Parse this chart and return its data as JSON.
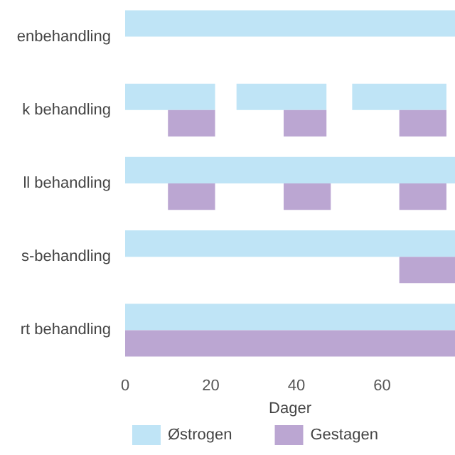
{
  "chart_data": {
    "type": "bar",
    "orientation": "horizontal",
    "xlabel": "Dager",
    "categories": [
      "enbehandling",
      "k behandling",
      "ll behandling",
      "s-behandling",
      "rt behandling"
    ],
    "xlim": [
      0,
      77
    ],
    "xticks": [
      0,
      20,
      40,
      60
    ],
    "legend": "bottom",
    "series": [
      {
        "name": "Østrogen",
        "color": "#bfe4f6",
        "values": [
          77,
          21,
          77,
          77,
          77
        ],
        "base": [
          0,
          0,
          0,
          0,
          0
        ]
      },
      {
        "color": "#bfe4f6",
        "values": [
          null,
          21,
          null,
          null,
          null
        ],
        "base": [
          null,
          26,
          null,
          null,
          null
        ]
      },
      {
        "color": "#bfe4f6",
        "values": [
          null,
          22,
          null,
          null,
          null
        ],
        "base": [
          null,
          53,
          null,
          null,
          null
        ]
      },
      {
        "name": "Gestagen",
        "color": "#bba6d2",
        "values": [
          null,
          11,
          11,
          13,
          77
        ],
        "base": [
          null,
          10,
          10,
          64,
          0
        ]
      },
      {
        "color": "#bba6d2",
        "values": [
          null,
          10,
          11,
          null,
          null
        ],
        "base": [
          null,
          37,
          37,
          null,
          null
        ]
      },
      {
        "color": "#bba6d2",
        "values": [
          null,
          11,
          11,
          null,
          null
        ],
        "base": [
          null,
          64,
          64,
          null,
          null
        ]
      }
    ]
  }
}
